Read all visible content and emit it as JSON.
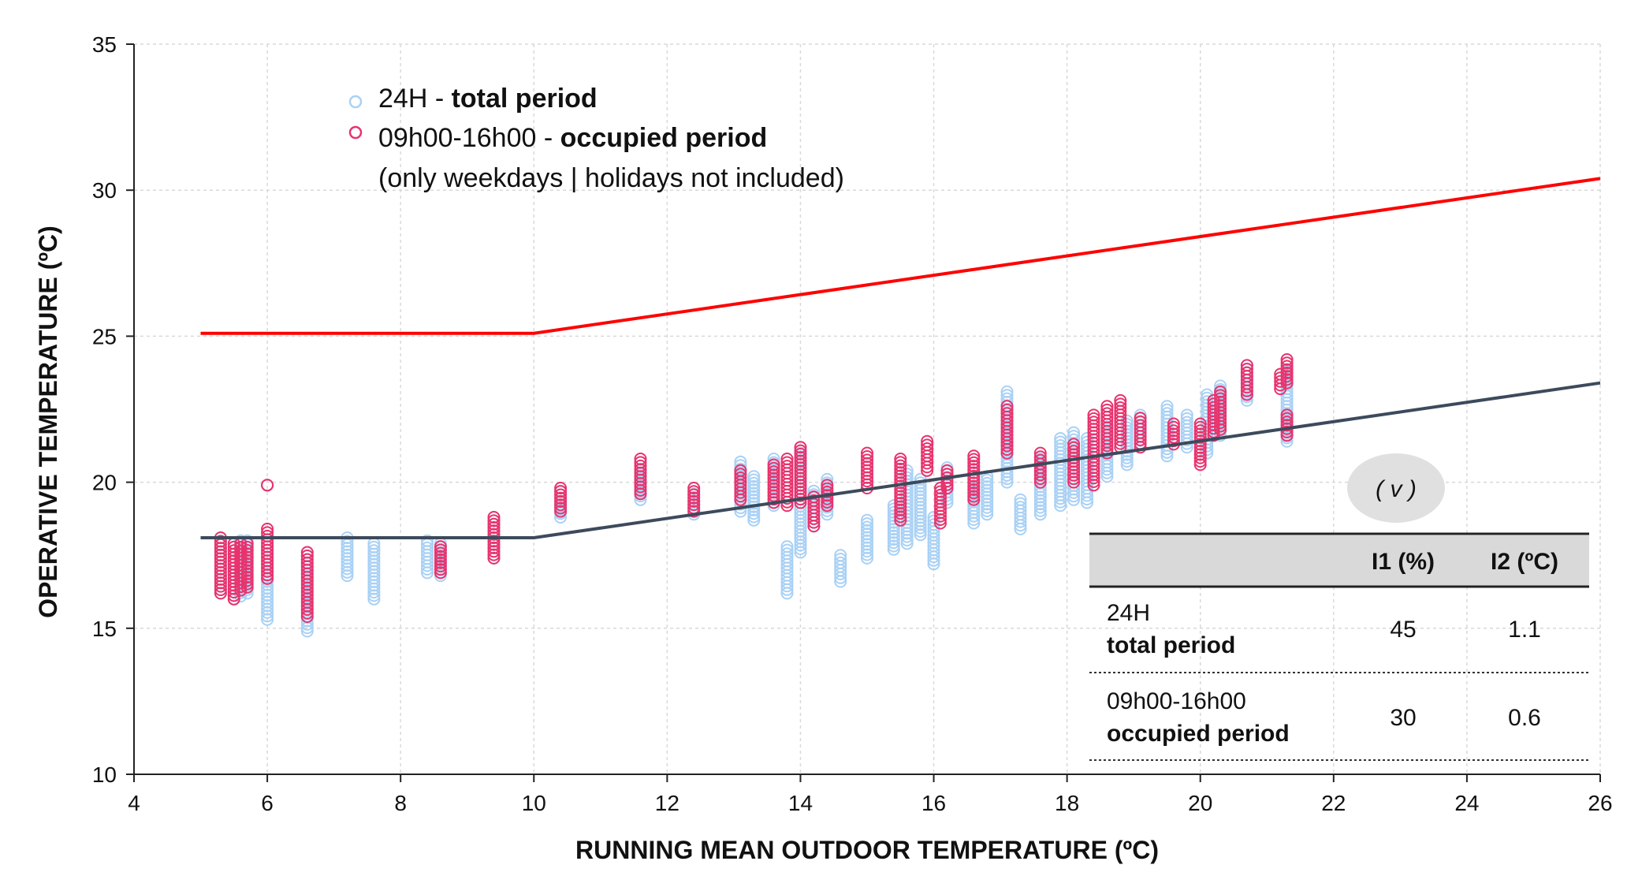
{
  "chart_data": {
    "type": "scatter",
    "xlabel": "RUNNING MEAN OUTDOOR TEMPERATURE (ºC)",
    "ylabel": "OPERATIVE TEMPERATURE (ºC)",
    "xlim": [
      4,
      26
    ],
    "ylim": [
      10,
      35
    ],
    "xticks": [
      4,
      6,
      8,
      10,
      12,
      14,
      16,
      18,
      20,
      22,
      24,
      26
    ],
    "yticks": [
      10,
      15,
      20,
      25,
      30,
      35
    ],
    "grid": true,
    "legend": {
      "position": "top-left",
      "entries": [
        {
          "name": "24H",
          "sep": " - ",
          "bold": "total period",
          "color": "#a9d1f5"
        },
        {
          "name": "09h00-16h00",
          "sep": " - ",
          "bold": "occupied period",
          "color": "#e8336d"
        }
      ],
      "note": "(only weekdays | holidays not included)"
    },
    "lines": [
      {
        "name": "upper limit",
        "color": "#ff0000",
        "x": [
          5,
          10,
          26
        ],
        "y": [
          25.1,
          25.1,
          30.4
        ]
      },
      {
        "name": "lower limit",
        "color": "#3d4a5c",
        "x": [
          5,
          10,
          26
        ],
        "y": [
          18.1,
          18.1,
          23.4
        ]
      }
    ],
    "series": [
      {
        "name": "24H - total period",
        "color": "#a9d1f5",
        "columns": [
          [
            5.3,
            16.2,
            18.1
          ],
          [
            5.5,
            16.0,
            17.9
          ],
          [
            5.6,
            16.1,
            18.0
          ],
          [
            5.7,
            16.2,
            18.0
          ],
          [
            6.0,
            15.3,
            17.8
          ],
          [
            6.6,
            14.9,
            17.6
          ],
          [
            7.2,
            16.8,
            18.1
          ],
          [
            7.6,
            16.0,
            17.9
          ],
          [
            8.4,
            16.9,
            18.0
          ],
          [
            8.6,
            16.8,
            17.9
          ],
          [
            9.4,
            17.4,
            18.8
          ],
          [
            10.4,
            18.8,
            19.7
          ],
          [
            11.6,
            19.4,
            20.4
          ],
          [
            12.4,
            18.9,
            19.6
          ],
          [
            13.1,
            19.0,
            20.7
          ],
          [
            13.3,
            18.7,
            20.2
          ],
          [
            13.6,
            19.2,
            20.8
          ],
          [
            13.8,
            16.2,
            17.8
          ],
          [
            14.0,
            17.6,
            21.0
          ],
          [
            14.2,
            18.5,
            19.7
          ],
          [
            14.4,
            18.9,
            20.1
          ],
          [
            14.6,
            16.6,
            17.5
          ],
          [
            15.0,
            17.4,
            18.7
          ],
          [
            15.4,
            17.7,
            19.2
          ],
          [
            15.6,
            17.9,
            20.4
          ],
          [
            15.8,
            18.2,
            20.1
          ],
          [
            16.0,
            17.2,
            18.8
          ],
          [
            16.2,
            19.3,
            20.5
          ],
          [
            16.6,
            18.6,
            19.8
          ],
          [
            16.8,
            18.9,
            20.2
          ],
          [
            17.1,
            20.0,
            23.1
          ],
          [
            17.3,
            18.4,
            19.4
          ],
          [
            17.6,
            18.9,
            20.8
          ],
          [
            17.9,
            19.2,
            21.5
          ],
          [
            18.1,
            19.4,
            21.7
          ],
          [
            18.3,
            19.3,
            21.5
          ],
          [
            18.6,
            20.2,
            21.9
          ],
          [
            18.9,
            20.6,
            22.1
          ],
          [
            19.1,
            21.3,
            22.3
          ],
          [
            19.5,
            20.9,
            22.6
          ],
          [
            19.8,
            21.2,
            22.3
          ],
          [
            20.1,
            21.0,
            23.0
          ],
          [
            20.3,
            21.6,
            23.3
          ],
          [
            20.7,
            22.8,
            24.0
          ],
          [
            21.3,
            21.4,
            23.8
          ]
        ]
      },
      {
        "name": "09h00-16h00 - occupied period",
        "color": "#e8336d",
        "columns": [
          [
            5.3,
            16.2,
            18.1
          ],
          [
            5.5,
            16.0,
            17.9
          ],
          [
            5.6,
            16.3,
            17.9
          ],
          [
            5.7,
            16.4,
            17.9
          ],
          [
            6.0,
            16.7,
            18.4
          ],
          [
            6.0,
            19.9,
            19.9
          ],
          [
            6.6,
            15.4,
            17.6
          ],
          [
            8.6,
            16.9,
            17.8
          ],
          [
            9.4,
            17.4,
            18.8
          ],
          [
            10.4,
            19.0,
            19.8
          ],
          [
            11.6,
            19.6,
            20.8
          ],
          [
            12.4,
            19.0,
            19.8
          ],
          [
            13.1,
            19.4,
            20.4
          ],
          [
            13.6,
            19.3,
            20.6
          ],
          [
            13.8,
            19.2,
            20.8
          ],
          [
            14.0,
            19.3,
            21.2
          ],
          [
            14.2,
            18.5,
            19.5
          ],
          [
            14.4,
            19.2,
            19.9
          ],
          [
            15.0,
            19.8,
            21.0
          ],
          [
            15.5,
            18.7,
            20.8
          ],
          [
            15.9,
            20.4,
            21.4
          ],
          [
            16.1,
            18.6,
            19.8
          ],
          [
            16.2,
            19.8,
            20.4
          ],
          [
            16.6,
            19.4,
            20.9
          ],
          [
            17.1,
            21.0,
            22.6
          ],
          [
            17.6,
            20.0,
            21.0
          ],
          [
            18.1,
            20.0,
            21.3
          ],
          [
            18.4,
            19.9,
            22.3
          ],
          [
            18.6,
            21.0,
            22.6
          ],
          [
            18.8,
            21.2,
            22.8
          ],
          [
            19.1,
            21.2,
            22.2
          ],
          [
            19.6,
            21.3,
            22.0
          ],
          [
            20.0,
            20.6,
            22.0
          ],
          [
            20.2,
            21.6,
            22.8
          ],
          [
            20.3,
            21.8,
            23.1
          ],
          [
            20.7,
            23.0,
            24.0
          ],
          [
            21.2,
            23.2,
            23.7
          ],
          [
            21.3,
            21.6,
            22.3
          ],
          [
            21.3,
            23.4,
            24.2
          ]
        ]
      }
    ],
    "badge": "( v )",
    "table": {
      "headers": [
        "",
        "I1 (%)",
        "I2 (ºC)"
      ],
      "rows": [
        {
          "label": "24H",
          "label_bold": "total period",
          "i1": "45",
          "i2": "1.1"
        },
        {
          "label": "09h00-16h00",
          "label_bold": "occupied period",
          "i1": "30",
          "i2": "0.6"
        }
      ]
    }
  }
}
